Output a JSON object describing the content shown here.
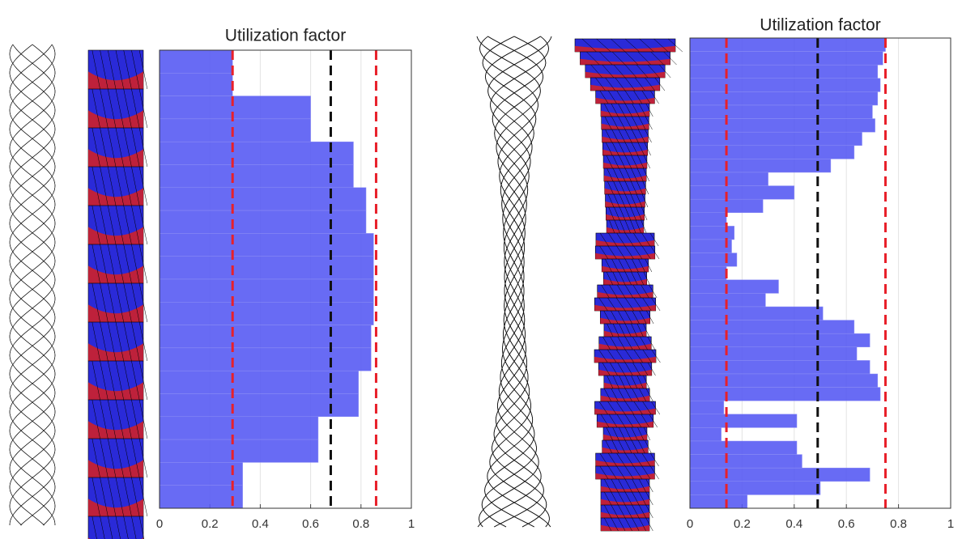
{
  "chart_data": [
    {
      "type": "bar",
      "orientation": "horizontal",
      "title": "Utilization factor",
      "color": "#5356f2",
      "values": [
        0.29,
        0.29,
        0.6,
        0.6,
        0.77,
        0.77,
        0.82,
        0.82,
        0.85,
        0.85,
        0.85,
        0.85,
        0.84,
        0.84,
        0.79,
        0.79,
        0.63,
        0.63,
        0.33,
        0.33
      ],
      "xlim": [
        0,
        1
      ],
      "xticks": [
        0,
        0.2,
        0.4,
        0.6,
        0.8,
        1
      ],
      "grid": true,
      "reference_lines": [
        {
          "value": 0.29,
          "color": "#e8202a"
        },
        {
          "value": 0.68,
          "color": "#111111"
        },
        {
          "value": 0.86,
          "color": "#e8202a"
        }
      ]
    },
    {
      "type": "bar",
      "orientation": "horizontal",
      "title": "Utilization factor",
      "color": "#5356f2",
      "values": [
        0.75,
        0.74,
        0.72,
        0.73,
        0.72,
        0.7,
        0.71,
        0.66,
        0.63,
        0.54,
        0.3,
        0.4,
        0.28,
        0.14,
        0.17,
        0.16,
        0.18,
        0.14,
        0.34,
        0.29,
        0.51,
        0.63,
        0.69,
        0.64,
        0.69,
        0.72,
        0.73,
        0.13,
        0.41,
        0.12,
        0.41,
        0.43,
        0.69,
        0.5,
        0.22
      ],
      "xlim": [
        0,
        1
      ],
      "xticks": [
        0,
        0.2,
        0.4,
        0.6,
        0.8,
        1
      ],
      "grid": true,
      "reference_lines": [
        {
          "value": 0.14,
          "color": "#e8202a"
        },
        {
          "value": 0.49,
          "color": "#111111"
        },
        {
          "value": 0.75,
          "color": "#e8202a"
        }
      ]
    }
  ]
}
